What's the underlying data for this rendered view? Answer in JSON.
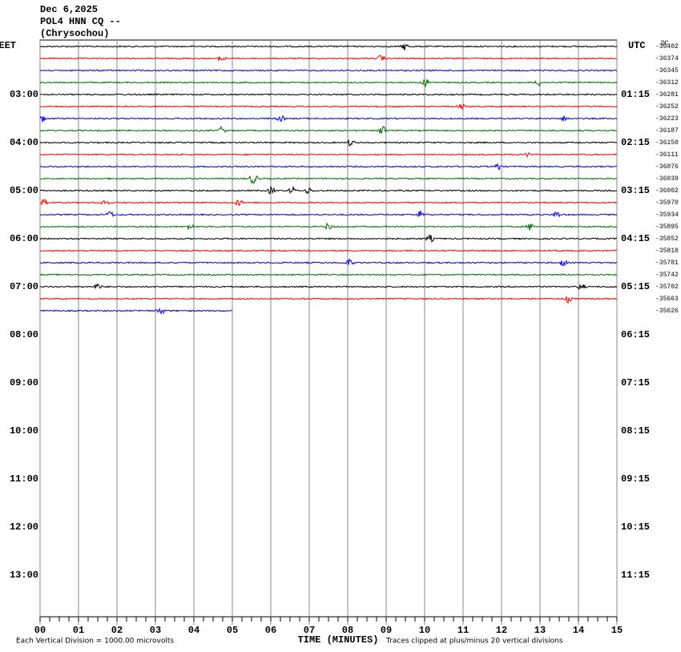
{
  "chart_data": {
    "type": "helicorder",
    "title": "Dec 6,2025",
    "station": "POL4 HNN CQ --",
    "location": "(Chrysochou)",
    "left_zone": "EET",
    "right_zone": "UTC",
    "dc_label": "DC",
    "left_hours": [
      "03:00",
      "04:00",
      "05:00",
      "06:00",
      "07:00",
      "08:00",
      "09:00",
      "10:00",
      "11:00",
      "12:00",
      "13:00"
    ],
    "right_hours": [
      "01:15",
      "02:15",
      "03:15",
      "04:15",
      "05:15",
      "06:15",
      "07:15",
      "08:15",
      "09:15",
      "10:15",
      "11:15"
    ],
    "trace_offsets": [
      -36402,
      -36374,
      -36345,
      -36312,
      -36281,
      -36252,
      -36223,
      -36187,
      -36150,
      -36111,
      -36076,
      -36039,
      -36002,
      -35970,
      -35934,
      -35895,
      -35852,
      -35818,
      -35781,
      -35742,
      -35702,
      -35663,
      -35626
    ],
    "colors": [
      "#000000",
      "#ff0000",
      "#0000ff",
      "#007000"
    ],
    "xlim": [
      0,
      15
    ],
    "xticks": [
      {
        "value": 0,
        "label": "00"
      },
      {
        "value": 1,
        "label": "01"
      },
      {
        "value": 2,
        "label": "02"
      },
      {
        "value": 3,
        "label": "03"
      },
      {
        "value": 4,
        "label": "04"
      },
      {
        "value": 5,
        "label": "05"
      },
      {
        "value": 6,
        "label": "06"
      },
      {
        "value": 7,
        "label": "07"
      },
      {
        "value": 8,
        "label": "08"
      },
      {
        "value": 9,
        "label": "09"
      },
      10,
      11,
      12,
      13,
      14,
      15
    ],
    "xlabel": "TIME (MINUTES)",
    "scale_note": "Each Vertical Division = 1000.00 microvolts",
    "clip_note": "Traces clipped at plus/minus 20 vertical divisions"
  }
}
